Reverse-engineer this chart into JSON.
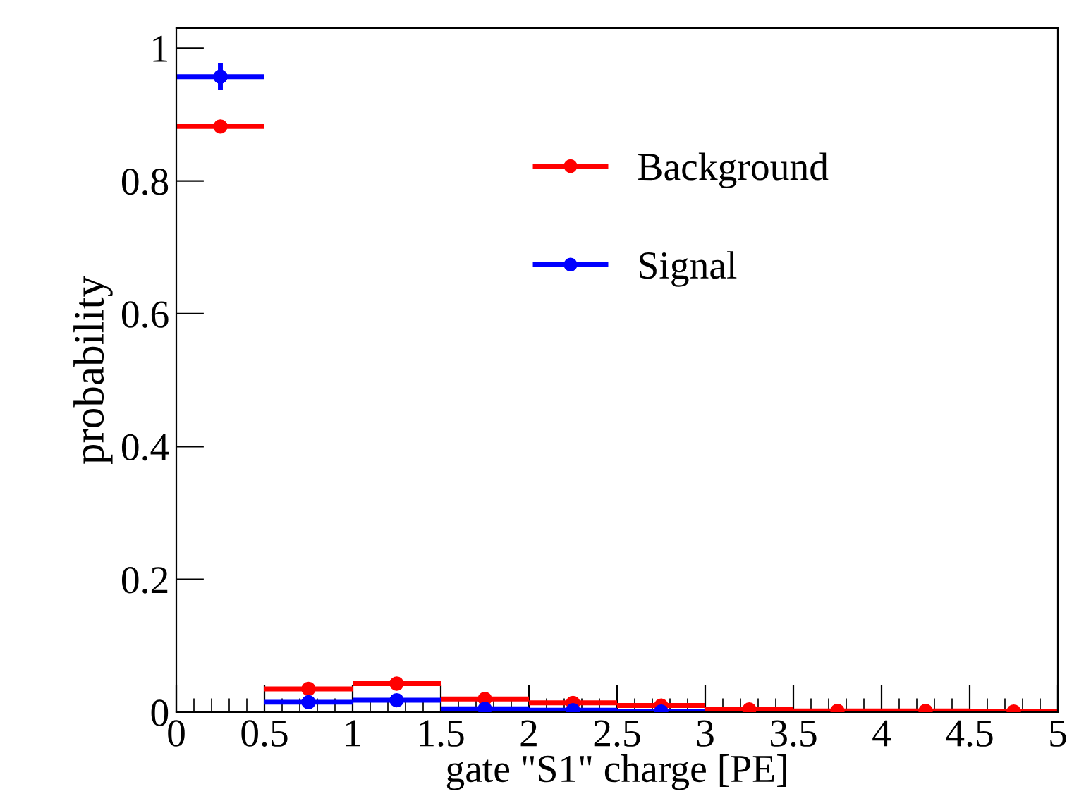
{
  "chart_data": {
    "type": "scatter",
    "xlabel": "gate \"S1\" charge [PE]",
    "ylabel": "probability",
    "x": [
      0.25,
      0.75,
      1.25,
      1.75,
      2.25,
      2.75,
      3.25,
      3.75,
      4.25,
      4.75
    ],
    "series": [
      {
        "name": "Background",
        "color": "#ff0000",
        "values": [
          0.882,
          0.035,
          0.043,
          0.02,
          0.014,
          0.01,
          0.004,
          0.002,
          0.002,
          0.001
        ],
        "xerrors": [
          0.25,
          0.25,
          0.25,
          0.25,
          0.25,
          0.25,
          0.25,
          0.25,
          0.25,
          0.25
        ]
      },
      {
        "name": "Signal",
        "color": "#0000ff",
        "values": [
          0.957,
          0.015,
          0.018,
          0.005,
          0.003,
          0.001,
          null,
          null,
          null,
          null
        ],
        "xerrors": [
          0.25,
          0.25,
          0.25,
          0.25,
          0.25,
          0.25,
          null,
          null,
          null,
          null
        ],
        "errors": [
          0.02,
          null,
          null,
          null,
          null,
          null,
          null,
          null,
          null,
          null
        ]
      }
    ],
    "xlim": [
      0,
      5
    ],
    "xticks": [
      0,
      0.5,
      1,
      1.5,
      2,
      2.5,
      3,
      3.5,
      4,
      4.5,
      5
    ],
    "ylim": [
      0,
      1.03
    ],
    "yticks": [
      0,
      0.2,
      0.4,
      0.6,
      0.8,
      1
    ],
    "marker": "circle",
    "legend": "top right",
    "grid": false
  }
}
